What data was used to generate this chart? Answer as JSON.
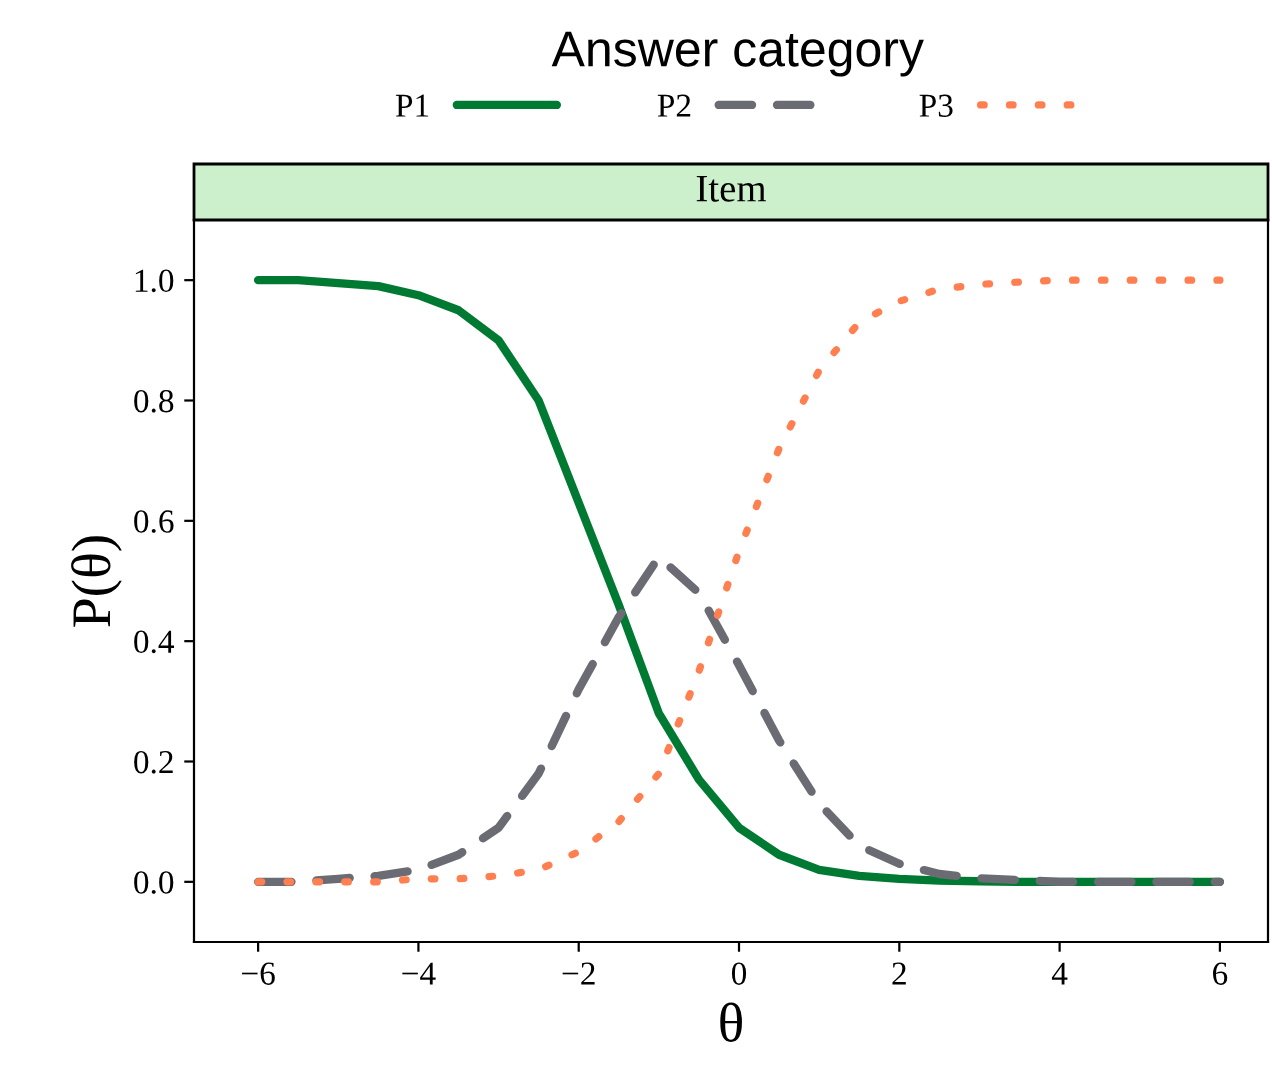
{
  "chart_data": {
    "type": "line",
    "subtitle": "Item",
    "legend_title": "Answer category",
    "xlabel": "θ",
    "ylabel": "P(θ)",
    "x": [
      -6,
      -5.5,
      -5,
      -4.5,
      -4,
      -3.5,
      -3,
      -2.5,
      -2,
      -1.5,
      -1,
      -0.5,
      0,
      0.5,
      1,
      1.5,
      2,
      2.5,
      3,
      3.5,
      4,
      4.5,
      5,
      5.5,
      6
    ],
    "series": [
      {
        "name": "P1",
        "color": "#007a33",
        "line_style": "solid",
        "values": [
          1.0,
          1.0,
          0.995,
          0.99,
          0.975,
          0.95,
          0.9,
          0.8,
          0.63,
          0.46,
          0.28,
          0.17,
          0.09,
          0.045,
          0.02,
          0.01,
          0.005,
          0.002,
          0.001,
          0,
          0,
          0,
          0,
          0,
          0
        ]
      },
      {
        "name": "P2",
        "color": "#6b6b73",
        "line_style": "dashed",
        "values": [
          0,
          0,
          0.005,
          0.01,
          0.02,
          0.045,
          0.09,
          0.18,
          0.32,
          0.44,
          0.54,
          0.48,
          0.36,
          0.235,
          0.13,
          0.06,
          0.03,
          0.013,
          0.006,
          0.003,
          0,
          0,
          0,
          0,
          0
        ]
      },
      {
        "name": "P3",
        "color": "#ff7f50",
        "line_style": "dotted",
        "values": [
          0,
          0,
          0,
          0,
          0.005,
          0.005,
          0.01,
          0.02,
          0.05,
          0.1,
          0.18,
          0.35,
          0.55,
          0.72,
          0.85,
          0.93,
          0.965,
          0.985,
          0.993,
          0.997,
          1,
          1,
          1,
          1,
          1
        ]
      }
    ],
    "xlim": [
      -6.8,
      6.6
    ],
    "ylim": [
      -0.1,
      1.1
    ],
    "xticks": [
      {
        "value": -6,
        "label": "−6"
      },
      {
        "value": -4,
        "label": "−4"
      },
      {
        "value": -2,
        "label": "−2"
      },
      0,
      2,
      4,
      6
    ],
    "yticks": [
      {
        "value": 0,
        "label": "0.0"
      },
      {
        "value": 0.2,
        "label": "0.2"
      },
      {
        "value": 0.4,
        "label": "0.4"
      },
      {
        "value": 0.6,
        "label": "0.6"
      },
      {
        "value": 0.8,
        "label": "0.8"
      },
      {
        "value": 1,
        "label": "1.0"
      }
    ],
    "legend": "top",
    "grid": false,
    "marker": "none"
  }
}
